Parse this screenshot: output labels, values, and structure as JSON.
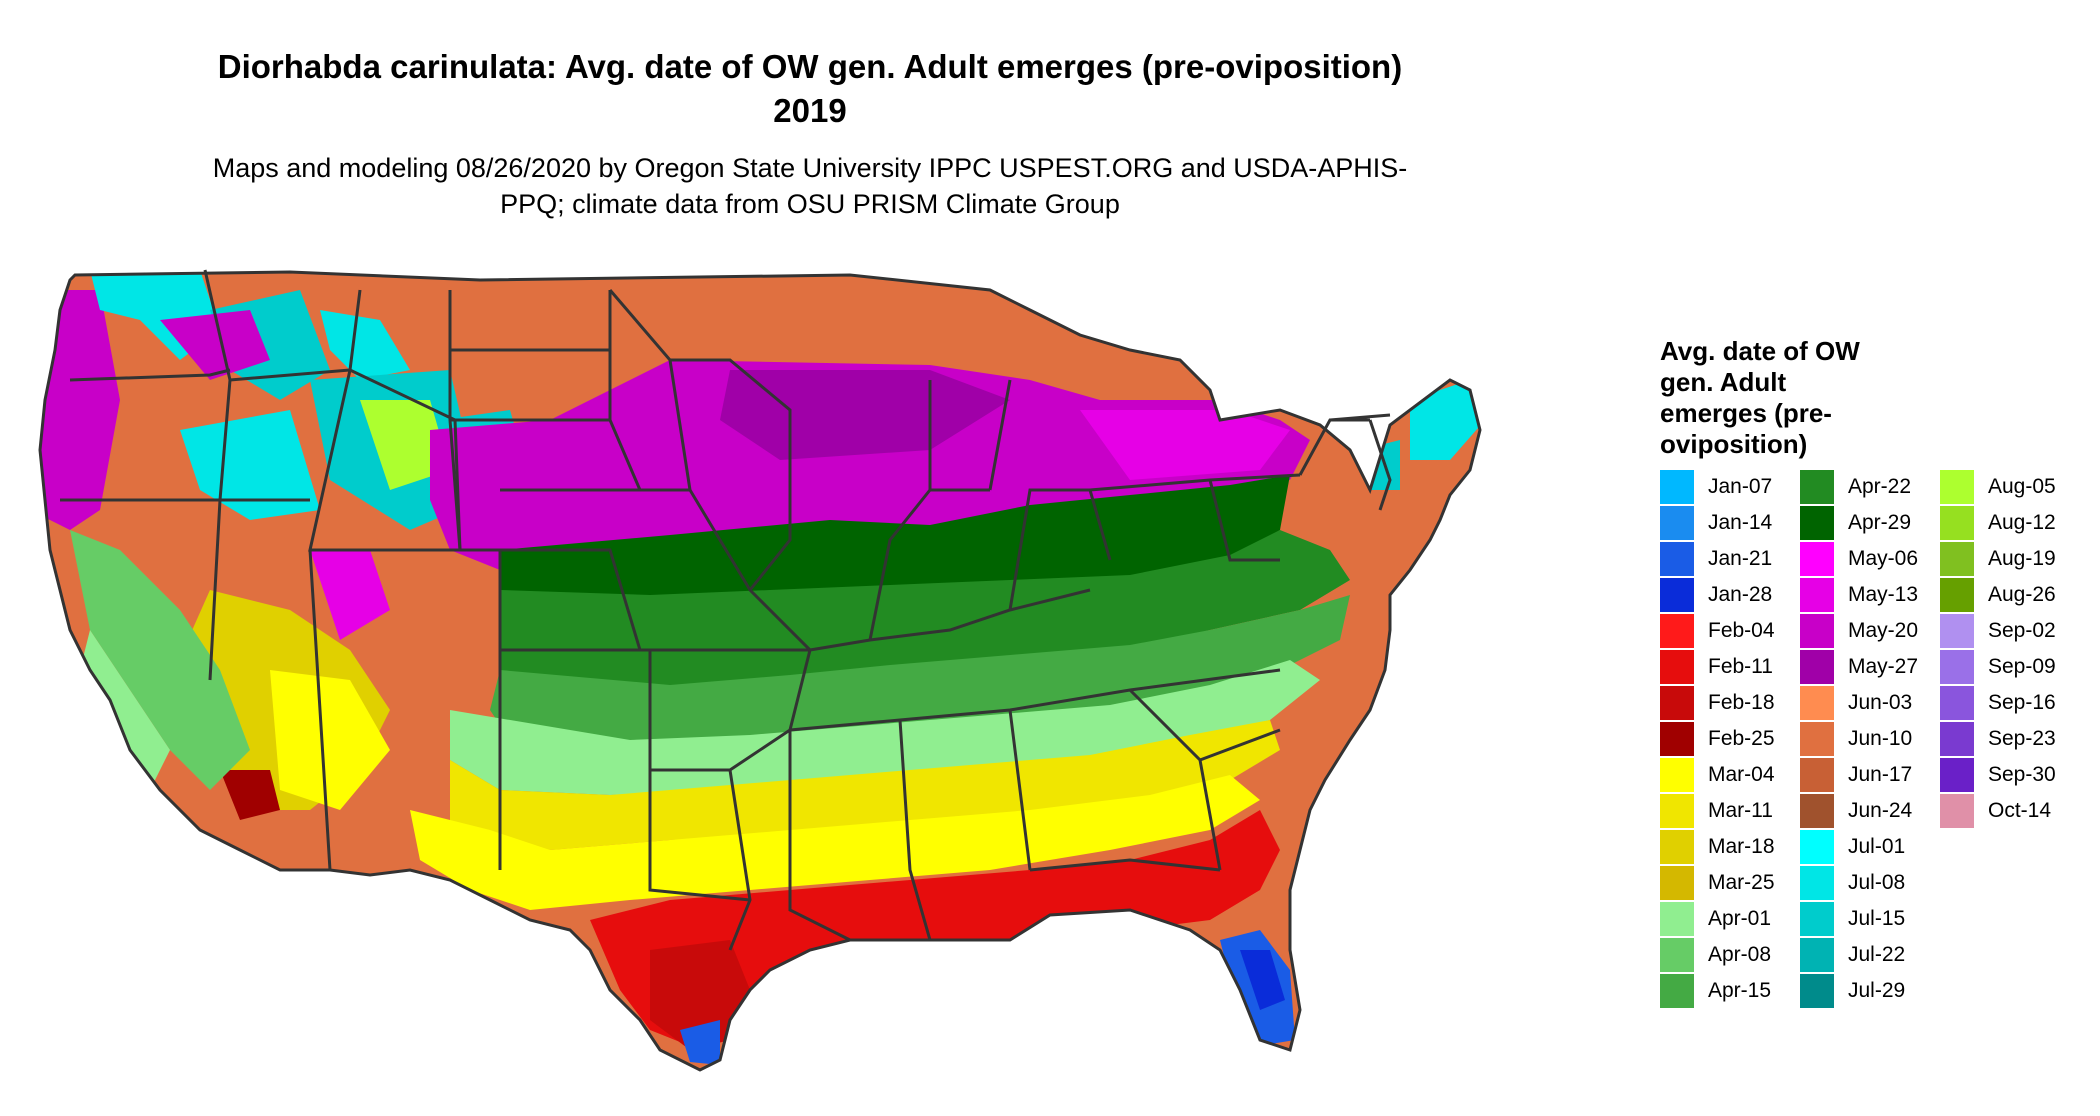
{
  "header": {
    "title": "Diorhabda carinulata: Avg. date of OW gen. Adult emerges (pre-oviposition) 2019",
    "subtitle": "Maps and modeling 08/26/2020 by Oregon State University IPPC USPEST.ORG and USDA-APHIS-PPQ; climate data from OSU PRISM Climate Group"
  },
  "legend": {
    "title": "Avg. date of OW gen. Adult emerges (pre-oviposition)",
    "columns": [
      [
        {
          "label": "Jan-07",
          "color": "#00b8ff"
        },
        {
          "label": "Jan-14",
          "color": "#1a8cf0"
        },
        {
          "label": "Jan-21",
          "color": "#1a5ce6"
        },
        {
          "label": "Jan-28",
          "color": "#0a2cd9"
        },
        {
          "label": "Feb-04",
          "color": "#ff1a1a"
        },
        {
          "label": "Feb-11",
          "color": "#e60d0d"
        },
        {
          "label": "Feb-18",
          "color": "#c80a0a"
        },
        {
          "label": "Feb-25",
          "color": "#a00000"
        },
        {
          "label": "Mar-04",
          "color": "#ffff00"
        },
        {
          "label": "Mar-11",
          "color": "#f0e600"
        },
        {
          "label": "Mar-18",
          "color": "#e0d000"
        },
        {
          "label": "Mar-25",
          "color": "#d4b800"
        },
        {
          "label": "Apr-01",
          "color": "#90ee90"
        },
        {
          "label": "Apr-08",
          "color": "#66cc66"
        },
        {
          "label": "Apr-15",
          "color": "#44aa44"
        }
      ],
      [
        {
          "label": "Apr-22",
          "color": "#228b22"
        },
        {
          "label": "Apr-29",
          "color": "#006400"
        },
        {
          "label": "May-06",
          "color": "#ff00ff"
        },
        {
          "label": "May-13",
          "color": "#e600e6"
        },
        {
          "label": "May-20",
          "color": "#c800c8"
        },
        {
          "label": "May-27",
          "color": "#a000a8"
        },
        {
          "label": "Jun-03",
          "color": "#ff8c50"
        },
        {
          "label": "Jun-10",
          "color": "#e07040"
        },
        {
          "label": "Jun-17",
          "color": "#c86035"
        },
        {
          "label": "Jun-24",
          "color": "#a0522d"
        },
        {
          "label": "Jul-01",
          "color": "#00ffff"
        },
        {
          "label": "Jul-08",
          "color": "#00e6e6"
        },
        {
          "label": "Jul-15",
          "color": "#00cccc"
        },
        {
          "label": "Jul-22",
          "color": "#00b3b3"
        },
        {
          "label": "Jul-29",
          "color": "#008b8b"
        }
      ],
      [
        {
          "label": "Aug-05",
          "color": "#adff2f"
        },
        {
          "label": "Aug-12",
          "color": "#96e020"
        },
        {
          "label": "Aug-19",
          "color": "#80c020"
        },
        {
          "label": "Aug-26",
          "color": "#66a000"
        },
        {
          "label": "Sep-02",
          "color": "#b090f0"
        },
        {
          "label": "Sep-09",
          "color": "#9a70e8"
        },
        {
          "label": "Sep-16",
          "color": "#8a55dd"
        },
        {
          "label": "Sep-23",
          "color": "#7a3ad0"
        },
        {
          "label": "Sep-30",
          "color": "#6a20c8"
        },
        {
          "label": "Oct-14",
          "color": "#e090a8"
        }
      ]
    ]
  }
}
